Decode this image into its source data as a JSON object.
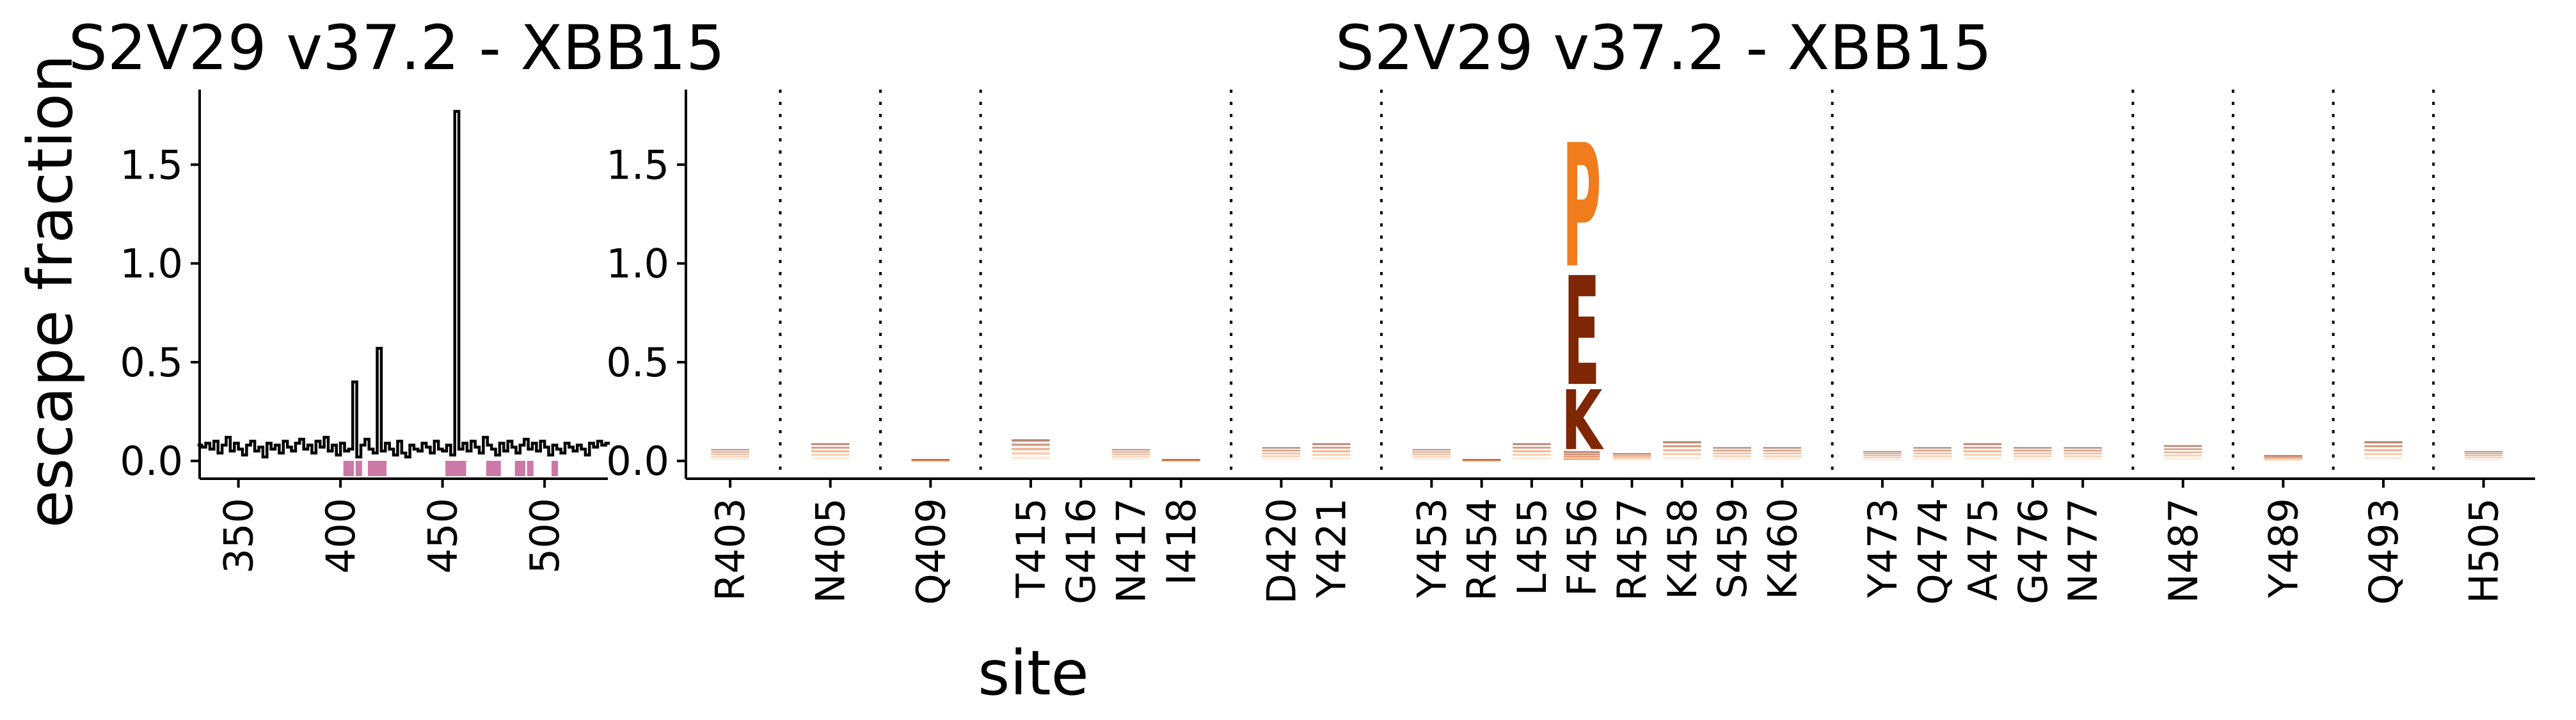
{
  "chart_data": [
    {
      "type": "line",
      "title": "S2V29 v37.2 - XBB15",
      "ylabel": "escape fraction",
      "xlabel": "",
      "xlim": [
        331,
        531
      ],
      "ylim": [
        -0.09,
        1.88
      ],
      "xticks": [
        "350",
        "400",
        "450",
        "500"
      ],
      "yticks": [
        "0.0",
        "0.5",
        "1.0",
        "1.5"
      ],
      "line_color": "#000000",
      "highlight_color": "#cc79a7",
      "series": [
        {
          "x": [
            331,
            333,
            335,
            337,
            339,
            341,
            343,
            345,
            347,
            349,
            351,
            353,
            355,
            357,
            359,
            361,
            363,
            365,
            367,
            369,
            371,
            373,
            375,
            377,
            379,
            381,
            383,
            385,
            387,
            389,
            391,
            393,
            395,
            397,
            399,
            401,
            403,
            405,
            407,
            409,
            411,
            413,
            415,
            417,
            419,
            421,
            423,
            425,
            427,
            429,
            431,
            433,
            435,
            437,
            439,
            441,
            443,
            445,
            447,
            449,
            451,
            453,
            455,
            457,
            459,
            461,
            463,
            465,
            467,
            469,
            471,
            473,
            475,
            477,
            479,
            481,
            483,
            485,
            487,
            489,
            491,
            493,
            495,
            497,
            499,
            501,
            503,
            505,
            507,
            509,
            511,
            513,
            515,
            517,
            519,
            521,
            523,
            525,
            527,
            529,
            531
          ],
          "values": [
            0.08,
            0.07,
            0.09,
            0.06,
            0.1,
            0.04,
            0.08,
            0.12,
            0.05,
            0.09,
            0.06,
            0.03,
            0.08,
            0.1,
            0.05,
            0.07,
            0.02,
            0.09,
            0.06,
            0.08,
            0.04,
            0.1,
            0.07,
            0.05,
            0.09,
            0.11,
            0.06,
            0.08,
            0.04,
            0.1,
            0.07,
            0.12,
            0.05,
            0.08,
            0.03,
            0.09,
            0.05,
            0.06,
            0.4,
            0.02,
            0.08,
            0.11,
            0.06,
            0.04,
            0.57,
            0.05,
            0.09,
            0.06,
            0.03,
            0.1,
            0.04,
            0.02,
            0.08,
            0.06,
            0.05,
            0.09,
            0.07,
            0.04,
            0.1,
            0.06,
            0.05,
            0.08,
            0.03,
            1.77,
            0.06,
            0.09,
            0.05,
            0.1,
            0.07,
            0.04,
            0.12,
            0.08,
            0.06,
            0.03,
            0.09,
            0.05,
            0.1,
            0.07,
            0.04,
            0.08,
            0.11,
            0.06,
            0.09,
            0.05,
            0.1,
            0.07,
            0.03,
            0.08,
            0.06,
            0.04,
            0.09,
            0.07,
            0.05,
            0.08,
            0.06,
            0.03,
            0.09,
            0.07,
            0.1,
            0.08,
            0.09
          ]
        }
      ],
      "highlight_sites": [
        403,
        405,
        409,
        415,
        416,
        417,
        418,
        420,
        421,
        453,
        454,
        455,
        456,
        457,
        458,
        459,
        460,
        473,
        474,
        475,
        476,
        477,
        487,
        489,
        493,
        505
      ]
    },
    {
      "type": "logo",
      "title": "S2V29 v37.2 - XBB15",
      "xlabel": "site",
      "ylim": [
        -0.09,
        1.88
      ],
      "yticks": [
        "0.0",
        "0.5",
        "1.0",
        "1.5"
      ],
      "groups": [
        [
          "R403"
        ],
        [
          "N405"
        ],
        [
          "Q409"
        ],
        [
          "T415",
          "G416",
          "N417",
          "I418"
        ],
        [
          "D420",
          "Y421"
        ],
        [
          "Y453",
          "R454",
          "L455",
          "F456",
          "R457",
          "K458",
          "S459",
          "K460"
        ],
        [
          "Y473",
          "Q474",
          "A475",
          "G476",
          "N477"
        ],
        [
          "N487"
        ],
        [
          "Y489"
        ],
        [
          "Q493"
        ],
        [
          "H505"
        ]
      ],
      "site_totals": [
        0.06,
        0.09,
        0.01,
        0.11,
        0.0,
        0.06,
        0.01,
        0.07,
        0.09,
        0.06,
        0.01,
        0.09,
        1.77,
        0.04,
        0.1,
        0.07,
        0.07,
        0.05,
        0.07,
        0.09,
        0.07,
        0.07,
        0.08,
        0.03,
        0.1,
        0.05
      ],
      "letters": [
        {
          "site": "F456",
          "letter": "K",
          "value": 0.33,
          "color": "#7f2704"
        },
        {
          "site": "F456",
          "letter": "E",
          "value": 0.6,
          "color": "#7f2704"
        },
        {
          "site": "F456",
          "letter": "P",
          "value": 0.68,
          "color": "#f07c1e"
        }
      ],
      "small_stack_colors": [
        "#7f2704",
        "#a63603",
        "#d94801",
        "#f16913",
        "#fdae6b"
      ]
    }
  ]
}
